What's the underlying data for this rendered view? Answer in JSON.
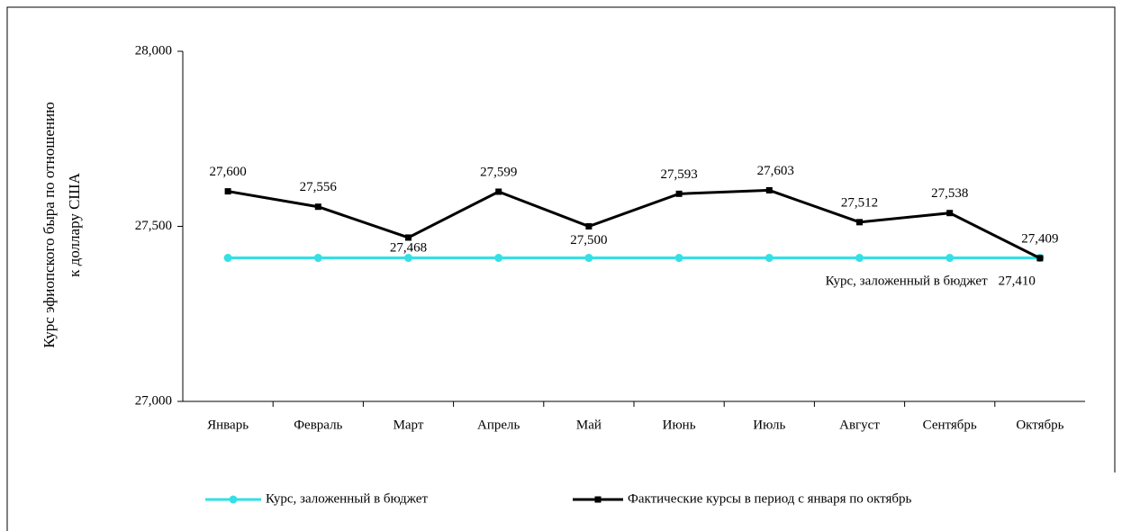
{
  "chart_data": {
    "type": "line",
    "y_label_lines": [
      "Курс эфиопского быра по отношению",
      "к доллару США"
    ],
    "categories": [
      "Январь",
      "Февраль",
      "Март",
      "Апрель",
      "Май",
      "Июнь",
      "Июль",
      "Август",
      "Сентябрь",
      "Октябрь"
    ],
    "series": [
      {
        "name": "Курс, заложенный в бюджет",
        "color": "#33e0e6",
        "marker": "circle",
        "values": [
          27.41,
          27.41,
          27.41,
          27.41,
          27.41,
          27.41,
          27.41,
          27.41,
          27.41,
          27.41
        ],
        "value_labels": [
          null,
          null,
          null,
          null,
          null,
          null,
          null,
          null,
          null,
          "27,410"
        ]
      },
      {
        "name": "Фактические курсы в период с января по октябрь",
        "color": "#000000",
        "marker": "square",
        "values": [
          27.6,
          27.556,
          27.468,
          27.599,
          27.5,
          27.593,
          27.603,
          27.512,
          27.538,
          27.409
        ],
        "value_labels": [
          "27,600",
          "27,556",
          "27,468",
          "27,599",
          "27,500",
          "27,593",
          "27,603",
          "27,512",
          "27,538",
          "27,409"
        ]
      }
    ],
    "ylim": [
      27,
      28
    ],
    "yticks": [
      {
        "value": 27,
        "label": "27,000"
      },
      {
        "value": 27.5,
        "label": "27,500"
      },
      {
        "value": 28,
        "label": "28,000"
      }
    ],
    "legend": "bottom"
  }
}
